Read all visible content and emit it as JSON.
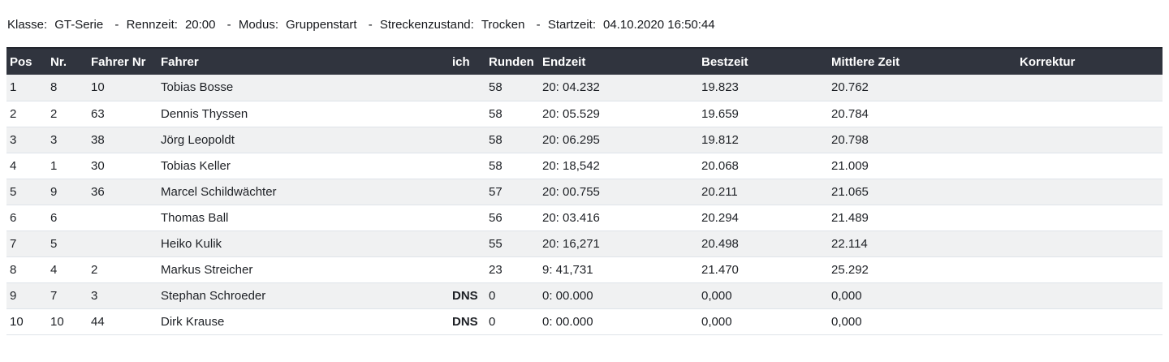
{
  "info_bar": {
    "separator": "-",
    "segments": [
      {
        "label": "Klasse:",
        "value": "GT-Serie"
      },
      {
        "label": "Rennzeit:",
        "value": "20:00"
      },
      {
        "label": "Modus:",
        "value": "Gruppenstart"
      },
      {
        "label": "Streckenzustand:",
        "value": "Trocken"
      },
      {
        "label": "Startzeit:",
        "value": "04.10.2020 16:50:44"
      }
    ]
  },
  "table": {
    "columns": [
      {
        "key": "pos",
        "label": "Pos"
      },
      {
        "key": "nr",
        "label": "Nr."
      },
      {
        "key": "fahrer_nr",
        "label": "Fahrer Nr"
      },
      {
        "key": "fahrer",
        "label": "Fahrer"
      },
      {
        "key": "ich",
        "label": "ich"
      },
      {
        "key": "runden",
        "label": "Runden"
      },
      {
        "key": "endzeit",
        "label": "Endzeit"
      },
      {
        "key": "bestzeit",
        "label": "Bestzeit"
      },
      {
        "key": "mittlere_zeit",
        "label": "Mittlere Zeit"
      },
      {
        "key": "korrektur",
        "label": "Korrektur"
      }
    ],
    "rows": [
      {
        "pos": "1",
        "nr": "8",
        "fahrer_nr": "10",
        "fahrer": "Tobias Bosse",
        "ich": "",
        "runden": "58",
        "endzeit": "20: 04.232",
        "bestzeit": "19.823",
        "mittlere_zeit": "20.762",
        "korrektur": ""
      },
      {
        "pos": "2",
        "nr": "2",
        "fahrer_nr": "63",
        "fahrer": "Dennis Thyssen",
        "ich": "",
        "runden": "58",
        "endzeit": "20: 05.529",
        "bestzeit": "19.659",
        "mittlere_zeit": "20.784",
        "korrektur": ""
      },
      {
        "pos": "3",
        "nr": "3",
        "fahrer_nr": "38",
        "fahrer": "Jörg Leopoldt",
        "ich": "",
        "runden": "58",
        "endzeit": "20: 06.295",
        "bestzeit": "19.812",
        "mittlere_zeit": "20.798",
        "korrektur": ""
      },
      {
        "pos": "4",
        "nr": "1",
        "fahrer_nr": "30",
        "fahrer": "Tobias Keller",
        "ich": "",
        "runden": "58",
        "endzeit": "20: 18,542",
        "bestzeit": "20.068",
        "mittlere_zeit": "21.009",
        "korrektur": ""
      },
      {
        "pos": "5",
        "nr": "9",
        "fahrer_nr": "36",
        "fahrer": "Marcel Schildwächter",
        "ich": "",
        "runden": "57",
        "endzeit": "20: 00.755",
        "bestzeit": "20.211",
        "mittlere_zeit": "21.065",
        "korrektur": ""
      },
      {
        "pos": "6",
        "nr": "6",
        "fahrer_nr": "",
        "fahrer": "Thomas Ball",
        "ich": "",
        "runden": "56",
        "endzeit": "20: 03.416",
        "bestzeit": "20.294",
        "mittlere_zeit": "21.489",
        "korrektur": ""
      },
      {
        "pos": "7",
        "nr": "5",
        "fahrer_nr": "",
        "fahrer": "Heiko Kulik",
        "ich": "",
        "runden": "55",
        "endzeit": "20: 16,271",
        "bestzeit": "20.498",
        "mittlere_zeit": "22.114",
        "korrektur": ""
      },
      {
        "pos": "8",
        "nr": "4",
        "fahrer_nr": "2",
        "fahrer": "Markus Streicher",
        "ich": "",
        "runden": "23",
        "endzeit": "9: 41,731",
        "bestzeit": "21.470",
        "mittlere_zeit": "25.292",
        "korrektur": ""
      },
      {
        "pos": "9",
        "nr": "7",
        "fahrer_nr": "3",
        "fahrer": "Stephan Schroeder",
        "ich": "DNS",
        "runden": "0",
        "endzeit": "0: 00.000",
        "bestzeit": "0,000",
        "mittlere_zeit": "0,000",
        "korrektur": ""
      },
      {
        "pos": "10",
        "nr": "10",
        "fahrer_nr": "44",
        "fahrer": "Dirk Krause",
        "ich": "DNS",
        "runden": "0",
        "endzeit": "0: 00.000",
        "bestzeit": "0,000",
        "mittlere_zeit": "0,000",
        "korrektur": ""
      }
    ]
  },
  "colors": {
    "header_bg": "#30343e",
    "header_border": "#23262e",
    "header_text": "#ffffff",
    "row_odd": "#f0f1f2",
    "row_even": "#ffffff",
    "row_border": "#dee3e9",
    "text": "#1d2025"
  }
}
